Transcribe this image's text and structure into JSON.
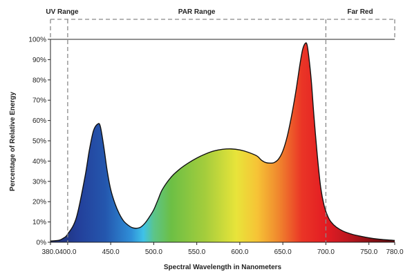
{
  "chart_data": {
    "type": "area",
    "title": "",
    "xlabel": "Spectral Wavelength in Nanometers",
    "ylabel": "Percentage of Relative Energy",
    "xlim": [
      380,
      780
    ],
    "ylim": [
      0,
      100
    ],
    "x_ticks": [
      380,
      400,
      450,
      500,
      550,
      600,
      650,
      700,
      750,
      780
    ],
    "x_tick_labels": [
      "380.0",
      "400.0",
      "450.0",
      "500.0",
      "550.0",
      "600.0",
      "650.0",
      "700.0",
      "750.0",
      "780.0"
    ],
    "y_ticks": [
      0,
      10,
      20,
      30,
      40,
      50,
      60,
      70,
      80,
      90,
      100
    ],
    "y_tick_labels": [
      "0%",
      "10%",
      "20%",
      "30%",
      "40%",
      "50%",
      "60%",
      "70%",
      "80%",
      "90%",
      "100%"
    ],
    "grid": false,
    "fill": "visible-spectrum gradient",
    "ranges": [
      {
        "label": "UV Range",
        "from": 380,
        "to": 400
      },
      {
        "label": "PAR Range",
        "from": 400,
        "to": 700
      },
      {
        "label": "Far Red",
        "from": 700,
        "to": 780
      }
    ],
    "series": [
      {
        "x": [
          380,
          390,
          395,
          400,
          410,
          420,
          425,
          430,
          435,
          438,
          442,
          446,
          450,
          455,
          460,
          465,
          470,
          475,
          480,
          485,
          490,
          495,
          500,
          505,
          510,
          520,
          530,
          540,
          550,
          560,
          570,
          580,
          590,
          600,
          610,
          620,
          625,
          630,
          635,
          640,
          645,
          650,
          655,
          660,
          665,
          670,
          673,
          676,
          678,
          680,
          683,
          686,
          690,
          694,
          698,
          702,
          706,
          712,
          720,
          730,
          740,
          750,
          760,
          770,
          780
        ],
        "y": [
          0.6,
          1,
          2,
          4,
          12,
          32,
          45,
          55,
          58.3,
          57,
          47,
          35,
          26,
          19,
          14,
          10.5,
          8.5,
          7.2,
          6.9,
          7.5,
          9.5,
          12.5,
          16,
          21,
          26,
          32,
          36,
          39,
          41.5,
          43.5,
          45,
          45.8,
          46,
          45.5,
          44.3,
          42.5,
          40.5,
          39.3,
          39,
          39.3,
          41,
          45,
          52,
          62,
          74,
          88,
          95,
          98,
          97.5,
          92,
          80,
          63,
          43,
          27,
          18,
          13,
          10,
          7.5,
          5.5,
          4,
          3,
          2.2,
          1.6,
          1.2,
          0.9
        ]
      }
    ]
  }
}
